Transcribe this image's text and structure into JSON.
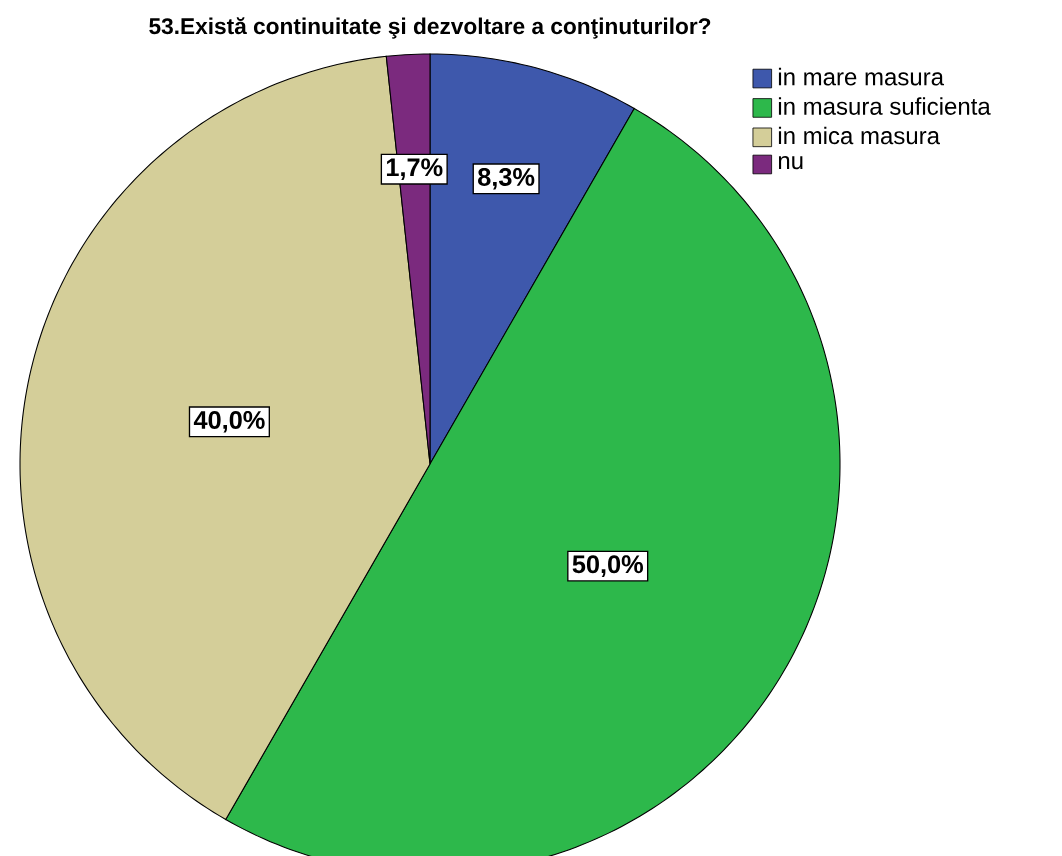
{
  "chart_data": {
    "type": "pie",
    "title": "53.Există continuitate şi dezvoltare a conţinuturilor?",
    "categories": [
      "in mare masura",
      "in masura suficienta",
      "in mica masura",
      "nu"
    ],
    "values": [
      8.3,
      50.0,
      40.0,
      1.7
    ],
    "colors": [
      "#3e58ac",
      "#2db84b",
      "#d4ce99",
      "#7b2a7e"
    ],
    "value_labels": [
      "8,3%",
      "50,0%",
      "40,0%",
      "1,7%"
    ],
    "legend": "top right"
  }
}
